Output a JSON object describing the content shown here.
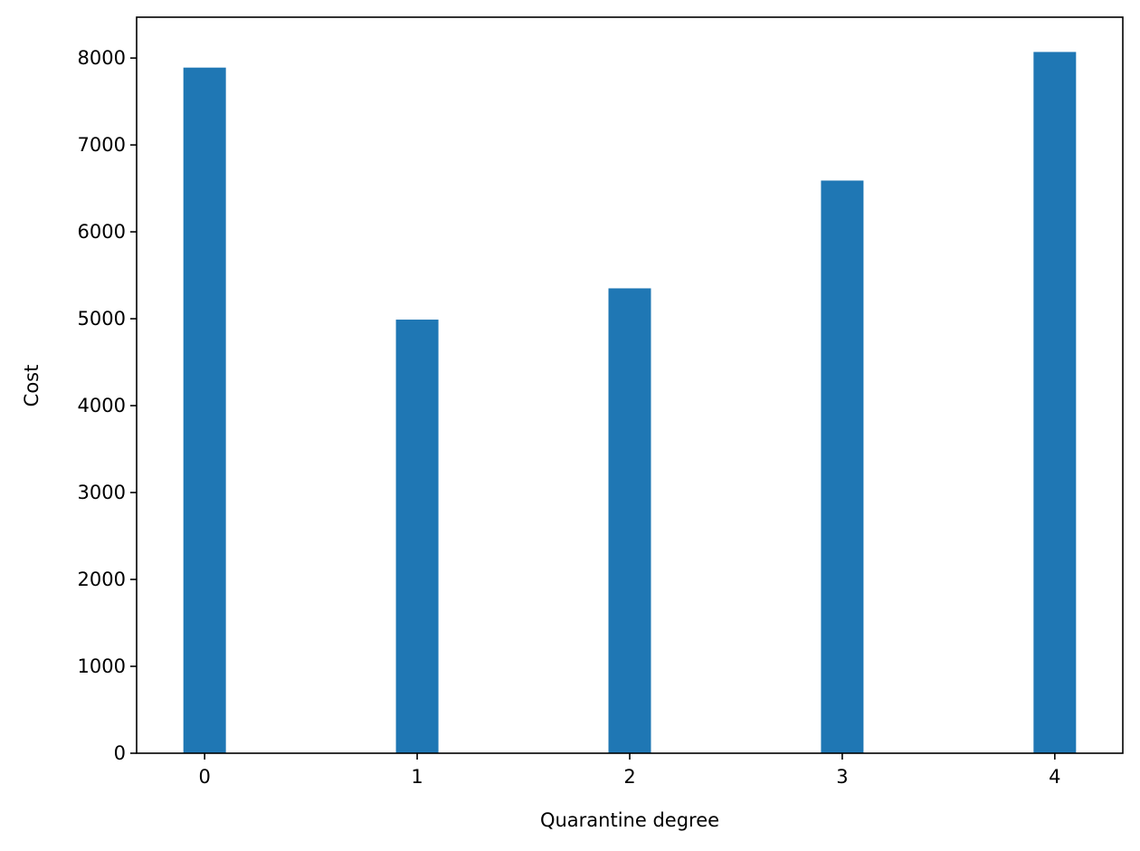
{
  "chart_data": {
    "type": "bar",
    "xlabel": "Quarantine degree",
    "ylabel": "Cost",
    "categories": [
      "0",
      "1",
      "2",
      "3",
      "4"
    ],
    "values": [
      7890,
      4990,
      5350,
      6590,
      8070
    ],
    "ylim": [
      0,
      8470
    ],
    "yticks": [
      0,
      1000,
      2000,
      3000,
      4000,
      5000,
      6000,
      7000,
      8000
    ],
    "ytick_labels": [
      "0",
      "1000",
      "2000",
      "3000",
      "4000",
      "5000",
      "6000",
      "7000",
      "8000"
    ],
    "grid": false,
    "legend": "none",
    "bar_color": "#1f77b4"
  }
}
